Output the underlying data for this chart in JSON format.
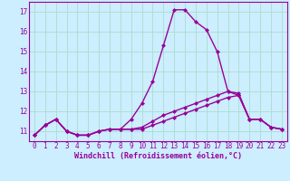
{
  "title": "",
  "xlabel": "Windchill (Refroidissement éolien,°C)",
  "background_color": "#cceeff",
  "grid_color": "#aaddcc",
  "line_color": "#990099",
  "x": [
    0,
    1,
    2,
    3,
    4,
    5,
    6,
    7,
    8,
    9,
    10,
    11,
    12,
    13,
    14,
    15,
    16,
    17,
    18,
    19,
    20,
    21,
    22,
    23
  ],
  "line1": [
    10.8,
    11.3,
    11.6,
    11.0,
    10.8,
    10.8,
    11.0,
    11.1,
    11.1,
    11.6,
    12.4,
    13.5,
    15.3,
    17.1,
    17.1,
    16.5,
    16.1,
    15.0,
    13.0,
    12.8,
    11.6,
    11.6,
    11.2,
    11.1
  ],
  "line2": [
    10.8,
    11.3,
    11.6,
    11.0,
    10.8,
    10.8,
    11.0,
    11.1,
    11.1,
    11.1,
    11.2,
    11.5,
    11.8,
    12.0,
    12.2,
    12.4,
    12.6,
    12.8,
    13.0,
    12.9,
    11.6,
    11.6,
    11.2,
    11.1
  ],
  "line3": [
    10.8,
    11.3,
    11.6,
    11.0,
    10.8,
    10.8,
    11.0,
    11.1,
    11.1,
    11.1,
    11.1,
    11.3,
    11.5,
    11.7,
    11.9,
    12.1,
    12.3,
    12.5,
    12.7,
    12.8,
    11.6,
    11.6,
    11.2,
    11.1
  ],
  "xlim": [
    -0.5,
    23.5
  ],
  "ylim": [
    10.5,
    17.5
  ],
  "yticks": [
    11,
    12,
    13,
    14,
    15,
    16,
    17
  ],
  "xticks": [
    0,
    1,
    2,
    3,
    4,
    5,
    6,
    7,
    8,
    9,
    10,
    11,
    12,
    13,
    14,
    15,
    16,
    17,
    18,
    19,
    20,
    21,
    22,
    23
  ],
  "markersize": 2.5,
  "linewidth": 1.0,
  "tick_fontsize": 5.5,
  "xlabel_fontsize": 6.0
}
